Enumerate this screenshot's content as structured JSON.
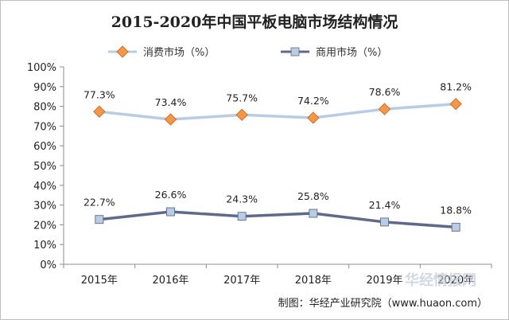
{
  "chart_data": {
    "type": "line",
    "title": "2015-2020年中国平板电脑市场结构情况",
    "categories": [
      "2015年",
      "2016年",
      "2017年",
      "2018年",
      "2019年",
      "2020年"
    ],
    "y_ticks": [
      "0%",
      "10%",
      "20%",
      "30%",
      "40%",
      "50%",
      "60%",
      "70%",
      "80%",
      "90%",
      "100%"
    ],
    "ylim": [
      0,
      100
    ],
    "legend_position": "top",
    "grid": false,
    "series": [
      {
        "name": "消费市场（%）",
        "values": [
          77.3,
          73.4,
          75.7,
          74.2,
          78.6,
          81.2
        ],
        "labels": [
          "77.3%",
          "73.4%",
          "75.7%",
          "74.2%",
          "78.6%",
          "81.2%"
        ],
        "line_color": "#b8cce4",
        "marker_color": "#f79646",
        "marker": "diamond"
      },
      {
        "name": "商用市场（%）",
        "values": [
          22.7,
          26.6,
          24.3,
          25.8,
          21.4,
          18.8
        ],
        "labels": [
          "22.7%",
          "26.6%",
          "24.3%",
          "25.8%",
          "21.4%",
          "18.8%"
        ],
        "line_color": "#5e6a8c",
        "marker_color": "#b8cce4",
        "marker": "square"
      }
    ]
  },
  "source_text": "制图：华经产业研究院（www.huaon.com）",
  "watermark_text": "华经情报网"
}
